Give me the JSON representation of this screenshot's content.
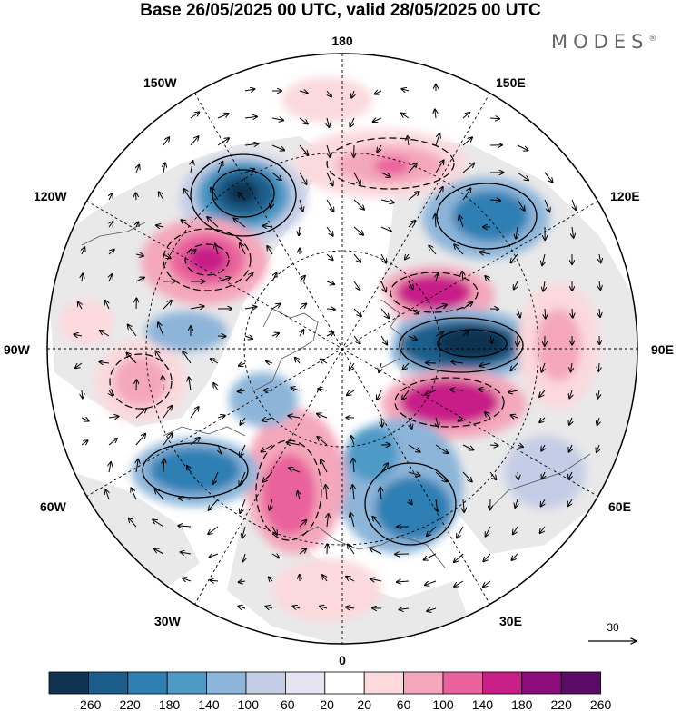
{
  "title": "Base 26/05/2025 00 UTC, valid 28/05/2025 00 UTC",
  "brand": "MODES",
  "brand_mark": "®",
  "longitude_labels": {
    "top": "180",
    "bottom": "0",
    "left": "90W",
    "right": "90E",
    "upper_left_1": "150W",
    "upper_left_2": "120W",
    "upper_right_1": "150E",
    "upper_right_2": "120E",
    "lower_left_1": "60W",
    "lower_left_2": "30W",
    "lower_right_1": "60E",
    "lower_right_2": "30E"
  },
  "reference_vector": "30",
  "colorbar": {
    "labels": [
      "-260",
      "-220",
      "-180",
      "-140",
      "-100",
      "-60",
      "-20",
      "20",
      "60",
      "100",
      "140",
      "180",
      "220",
      "260"
    ],
    "colors": [
      "#0f3350",
      "#1b5e8c",
      "#2e7fb3",
      "#4e9ac6",
      "#8db5d9",
      "#c4cde6",
      "#e6e4f1",
      "#ffffff",
      "#fbd9dd",
      "#f4a7bb",
      "#e9629c",
      "#c81e88",
      "#8d0c7c",
      "#5a0b66"
    ]
  },
  "anomaly_features": [
    {
      "sign": "neg",
      "strength": 3
    },
    {
      "sign": "pos",
      "strength": 2
    },
    {
      "sign": "pos",
      "strength": 1
    },
    {
      "sign": "neg",
      "strength": 2
    },
    {
      "sign": "pos",
      "strength": 2
    },
    {
      "sign": "neg",
      "strength": 3
    },
    {
      "sign": "pos",
      "strength": 2
    },
    {
      "sign": "neg",
      "strength": 2
    },
    {
      "sign": "pos",
      "strength": 2
    },
    {
      "sign": "neg",
      "strength": 2
    },
    {
      "sign": "neg",
      "strength": 1
    },
    {
      "sign": "pos",
      "strength": 1
    },
    {
      "sign": "neg",
      "strength": 1
    },
    {
      "sign": "pos",
      "strength": 1
    }
  ]
}
